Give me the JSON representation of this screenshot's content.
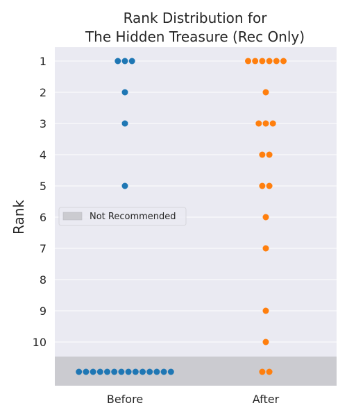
{
  "chart_data": {
    "type": "scatter",
    "title_line1": "Rank Distribution for",
    "title_line2": "The Hidden Treasure (Rec Only)",
    "xlabel": "",
    "ylabel": "Rank",
    "categories": [
      "Before",
      "After"
    ],
    "y_ticks": [
      1,
      2,
      3,
      4,
      5,
      6,
      7,
      8,
      9,
      10
    ],
    "y_axis_inverted": true,
    "not_recommended_label": "Not Recommended",
    "legend_position": "center-left",
    "grid": true,
    "colors": {
      "background": "#eaeaf2",
      "grid": "#ffffff",
      "Before": "#1f77b4",
      "After": "#ff7f0e",
      "not_recommended_band": "#cbcbd0"
    },
    "series": [
      {
        "name": "Before",
        "points": [
          {
            "rank": 1,
            "count": 3
          },
          {
            "rank": 2,
            "count": 1
          },
          {
            "rank": 3,
            "count": 1
          },
          {
            "rank": 5,
            "count": 1
          },
          {
            "rank": "Not Recommended",
            "count": 14
          }
        ]
      },
      {
        "name": "After",
        "points": [
          {
            "rank": 1,
            "count": 6
          },
          {
            "rank": 2,
            "count": 1
          },
          {
            "rank": 3,
            "count": 3
          },
          {
            "rank": 4,
            "count": 2
          },
          {
            "rank": 5,
            "count": 2
          },
          {
            "rank": 6,
            "count": 1
          },
          {
            "rank": 7,
            "count": 1
          },
          {
            "rank": 9,
            "count": 1
          },
          {
            "rank": 10,
            "count": 1
          },
          {
            "rank": "Not Recommended",
            "count": 2
          }
        ]
      }
    ]
  }
}
